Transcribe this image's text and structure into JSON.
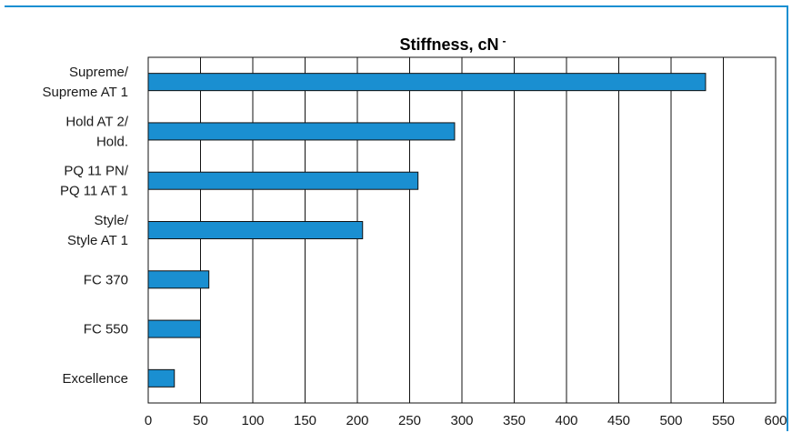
{
  "colors": {
    "bar_fill": "#1a8fd1",
    "bar_stroke": "#111111",
    "frame": "#1a8fd1",
    "grid": "#111111"
  },
  "chart_data": {
    "type": "bar",
    "orientation": "horizontal",
    "title": "Stiffness, cN",
    "title_suffix": "-",
    "xlabel": "",
    "ylabel": "",
    "categories": [
      [
        "Supreme/",
        "Supreme AT 1"
      ],
      [
        "Hold AT 2/",
        "Hold."
      ],
      [
        "PQ 11 PN/",
        "PQ 11 AT 1"
      ],
      [
        "Style/",
        "Style AT 1"
      ],
      [
        "FC 370"
      ],
      [
        "FC 550"
      ],
      [
        "Excellence"
      ]
    ],
    "values": [
      533,
      293,
      258,
      205,
      58,
      50,
      25
    ],
    "xlim": [
      0,
      600
    ],
    "xticks": [
      "0",
      "50",
      "100",
      "150",
      "200",
      "250",
      "300",
      "350",
      "400",
      "450",
      "500",
      "550",
      "600"
    ],
    "grid": true,
    "legend": "none"
  }
}
